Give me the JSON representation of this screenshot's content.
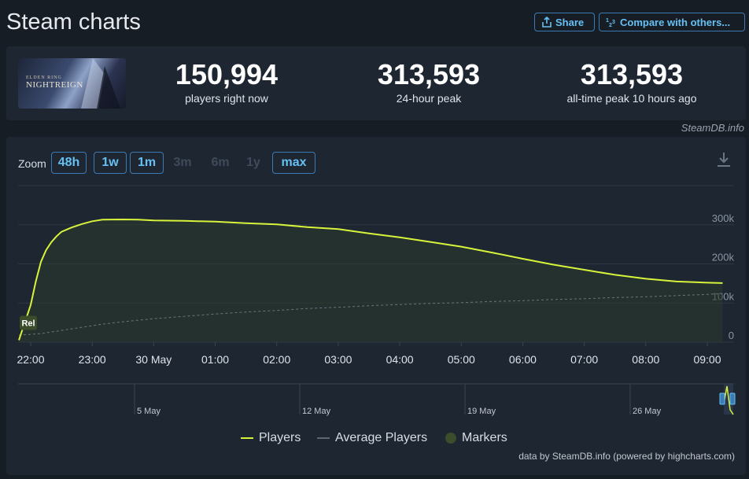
{
  "header": {
    "title": "Steam charts",
    "share_label": "Share",
    "compare_label": "Compare with others..."
  },
  "stats": {
    "thumb_logo_top": "ELDEN RING",
    "thumb_logo": "NIGHTREIGN",
    "current": {
      "value": "150,994",
      "label": "players right now"
    },
    "peak24": {
      "value": "313,593",
      "label": "24-hour peak"
    },
    "alltime": {
      "value": "313,593",
      "label": "all-time peak 10 hours ago"
    }
  },
  "credit": "SteamDB.info",
  "zoom": {
    "label": "Zoom",
    "buttons": [
      {
        "label": "48h",
        "enabled": true
      },
      {
        "label": "1w",
        "enabled": true
      },
      {
        "label": "1m",
        "enabled": true
      },
      {
        "label": "3m",
        "enabled": false
      },
      {
        "label": "6m",
        "enabled": false
      },
      {
        "label": "1y",
        "enabled": false
      },
      {
        "label": "max",
        "enabled": true
      }
    ]
  },
  "chart_data": {
    "type": "area",
    "x": [
      "21:50",
      "22:00",
      "22:05",
      "22:10",
      "22:15",
      "22:20",
      "22:25",
      "22:30",
      "22:40",
      "22:50",
      "23:00",
      "23:10",
      "23:30",
      "23:45",
      "00:00",
      "00:30",
      "01:00",
      "01:30",
      "02:00",
      "02:30",
      "03:00",
      "03:30",
      "04:00",
      "04:30",
      "05:00",
      "05:30",
      "06:00",
      "06:30",
      "07:00",
      "07:30",
      "08:00",
      "08:30",
      "09:00",
      "09:15"
    ],
    "series": [
      {
        "name": "Players",
        "color": "#d8f33b",
        "values": [
          5000,
          95000,
          155000,
          205000,
          235000,
          255000,
          270000,
          282000,
          293000,
          302000,
          309000,
          313000,
          313593,
          313000,
          311000,
          310000,
          308000,
          304000,
          301000,
          294000,
          289000,
          278000,
          268000,
          256000,
          244000,
          229000,
          213000,
          198000,
          185000,
          172000,
          162000,
          155000,
          152000,
          150994
        ]
      },
      {
        "name": "Average Players",
        "color": "#5c6672",
        "values": [
          18000,
          20000,
          21000,
          22000,
          24000,
          26000,
          28000,
          30000,
          34000,
          38000,
          42000,
          46000,
          52000,
          56000,
          60000,
          66000,
          72000,
          77000,
          81000,
          86000,
          89000,
          93000,
          96000,
          99000,
          101000,
          104000,
          106000,
          109000,
          111000,
          114000,
          116000,
          119000,
          122000,
          124000
        ]
      }
    ],
    "marker": {
      "label": "Rel",
      "x": "21:50"
    },
    "y_ticks": [
      "0",
      "100k",
      "200k",
      "300k"
    ],
    "ylim": [
      0,
      400000
    ],
    "x_ticks": [
      "22:00",
      "23:00",
      "30 May",
      "01:00",
      "02:00",
      "03:00",
      "04:00",
      "05:00",
      "06:00",
      "07:00",
      "08:00",
      "09:00"
    ],
    "navigator_ticks": [
      "5 May",
      "12 May",
      "19 May",
      "26 May"
    ],
    "legend": [
      "Players",
      "Average Players",
      "Markers"
    ],
    "legend_position": "bottom-center",
    "grid": true
  },
  "hc_credit": "data by SteamDB.info (powered by highcharts.com)"
}
